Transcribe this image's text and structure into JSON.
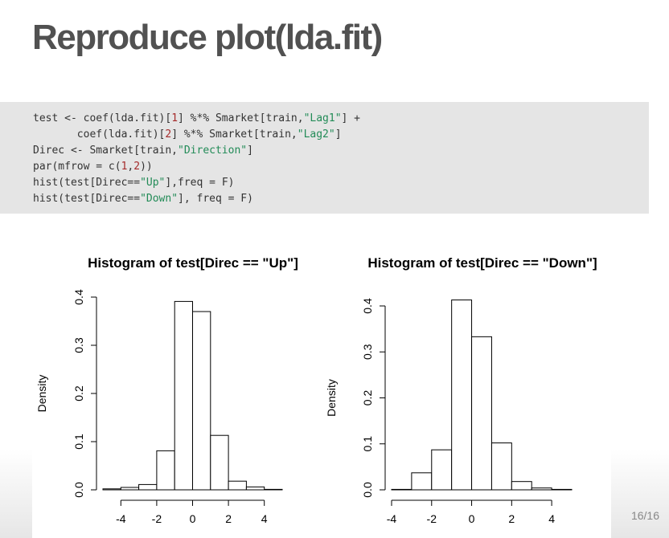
{
  "slide": {
    "title": "Reproduce plot(lda.fit)",
    "page_number": "16/16"
  },
  "code": {
    "lines": [
      [
        {
          "t": "test <- coef(lda.fit)["
        },
        {
          "t": "1",
          "k": "num"
        },
        {
          "t": "] %*% Smarket[train,"
        },
        {
          "t": "\"Lag1\"",
          "k": "str"
        },
        {
          "t": "] +"
        }
      ],
      [
        {
          "t": "       coef(lda.fit)["
        },
        {
          "t": "2",
          "k": "num"
        },
        {
          "t": "] %*% Smarket[train,"
        },
        {
          "t": "\"Lag2\"",
          "k": "str"
        },
        {
          "t": "]"
        }
      ],
      [
        {
          "t": "Direc <- Smarket[train,"
        },
        {
          "t": "\"Direction\"",
          "k": "str"
        },
        {
          "t": "]"
        }
      ],
      [
        {
          "t": "par(mfrow = c("
        },
        {
          "t": "1",
          "k": "num"
        },
        {
          "t": ","
        },
        {
          "t": "2",
          "k": "num"
        },
        {
          "t": "))"
        }
      ],
      [
        {
          "t": "hist(test[Direc=="
        },
        {
          "t": "\"Up\"",
          "k": "str"
        },
        {
          "t": "],freq = F)"
        }
      ],
      [
        {
          "t": "hist(test[Direc=="
        },
        {
          "t": "\"Down\"",
          "k": "str"
        },
        {
          "t": "], freq = F)"
        }
      ]
    ]
  },
  "chart_data": [
    {
      "type": "bar",
      "title": "Histogram of test[Direc == \"Up\"]",
      "xlabel": "",
      "ylabel": "Density",
      "bin_edges": [
        -5,
        -4,
        -3,
        -2,
        -1,
        0,
        1,
        2,
        3,
        4,
        5
      ],
      "values": [
        0.002,
        0.005,
        0.011,
        0.081,
        0.391,
        0.37,
        0.113,
        0.018,
        0.006,
        0.001
      ],
      "xlim": [
        -5,
        5
      ],
      "ylim": [
        0,
        0.4
      ],
      "x_ticks": [
        -4,
        -2,
        0,
        2,
        4
      ],
      "y_ticks": [
        0.0,
        0.1,
        0.2,
        0.3,
        0.4
      ],
      "x_tick_labels": [
        "-4",
        "-2",
        "0",
        "2",
        "4"
      ],
      "y_tick_labels": [
        "0.0",
        "0.1",
        "0.2",
        "0.3",
        "0.4"
      ],
      "grid": false
    },
    {
      "type": "bar",
      "title": "Histogram of test[Direc == \"Down\"]",
      "xlabel": "",
      "ylabel": "Density",
      "bin_edges": [
        -4,
        -3,
        -2,
        -1,
        0,
        1,
        2,
        3,
        4,
        5
      ],
      "values": [
        0.001,
        0.037,
        0.087,
        0.413,
        0.333,
        0.102,
        0.018,
        0.004,
        0.001
      ],
      "xlim": [
        -4,
        5
      ],
      "ylim": [
        0,
        0.4
      ],
      "x_ticks": [
        -4,
        -2,
        0,
        2,
        4
      ],
      "y_ticks": [
        0.0,
        0.1,
        0.2,
        0.3,
        0.4
      ],
      "x_tick_labels": [
        "-4",
        "-2",
        "0",
        "2",
        "4"
      ],
      "y_tick_labels": [
        "0.0",
        "0.1",
        "0.2",
        "0.3",
        "0.4"
      ],
      "grid": false
    }
  ]
}
